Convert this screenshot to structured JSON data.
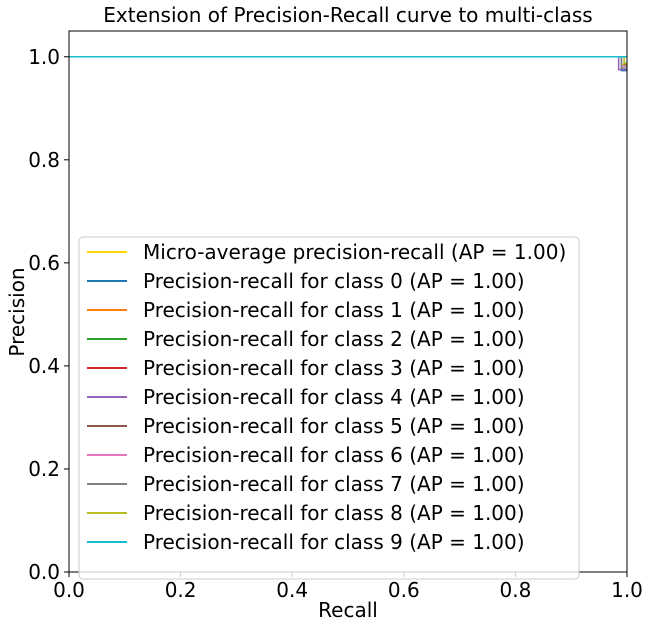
{
  "chart_data": {
    "type": "line",
    "title": "Extension of Precision-Recall curve to multi-class",
    "xlabel": "Recall",
    "ylabel": "Precision",
    "xlim": [
      0.0,
      1.0
    ],
    "ylim": [
      0.0,
      1.05
    ],
    "xticks": [
      "0.0",
      "0.2",
      "0.4",
      "0.6",
      "0.8",
      "1.0"
    ],
    "yticks": [
      "0.0",
      "0.2",
      "0.4",
      "0.6",
      "0.8",
      "1.0"
    ],
    "grid": false,
    "legend_position": "lower-left",
    "series": [
      {
        "name": "Micro-average precision-recall (AP = 1.00)",
        "color": "#ffd700",
        "x": [
          0.0,
          0.99,
          0.99,
          1.0
        ],
        "y": [
          1.0,
          1.0,
          0.985,
          0.985
        ]
      },
      {
        "name": "Precision-recall for class 0 (AP = 1.00)",
        "color": "#1f77b4",
        "x": [
          0.0,
          0.99,
          0.99,
          1.0
        ],
        "y": [
          1.0,
          1.0,
          0.973,
          0.973
        ]
      },
      {
        "name": "Precision-recall for class 1 (AP = 1.00)",
        "color": "#ff7f0e",
        "x": [
          0.0,
          0.995,
          0.995,
          1.0
        ],
        "y": [
          1.0,
          1.0,
          0.985,
          0.985
        ]
      },
      {
        "name": "Precision-recall for class 2 (AP = 1.00)",
        "color": "#2ca02c",
        "x": [
          0.0,
          0.995,
          0.995,
          1.0
        ],
        "y": [
          1.0,
          1.0,
          0.982,
          0.982
        ]
      },
      {
        "name": "Precision-recall for class 3 (AP = 1.00)",
        "color": "#d62728",
        "x": [
          0.0,
          1.0
        ],
        "y": [
          1.0,
          1.0
        ]
      },
      {
        "name": "Precision-recall for class 4 (AP = 1.00)",
        "color": "#9467bd",
        "x": [
          0.0,
          0.985,
          0.985,
          1.0
        ],
        "y": [
          1.0,
          1.0,
          0.975,
          0.975
        ]
      },
      {
        "name": "Precision-recall for class 5 (AP = 1.00)",
        "color": "#8c564b",
        "x": [
          0.0,
          1.0
        ],
        "y": [
          1.0,
          1.0
        ]
      },
      {
        "name": "Precision-recall for class 6 (AP = 1.00)",
        "color": "#e377c2",
        "x": [
          0.0,
          0.99,
          0.99,
          1.0
        ],
        "y": [
          1.0,
          1.0,
          0.982,
          0.982
        ]
      },
      {
        "name": "Precision-recall for class 7 (AP = 1.00)",
        "color": "#7f7f7f",
        "x": [
          0.0,
          0.99,
          0.99,
          1.0
        ],
        "y": [
          1.0,
          1.0,
          0.978,
          0.978
        ]
      },
      {
        "name": "Precision-recall for class 8 (AP = 1.00)",
        "color": "#bcbd22",
        "x": [
          0.0,
          0.995,
          0.995,
          1.0
        ],
        "y": [
          1.0,
          1.0,
          0.988,
          0.988
        ]
      },
      {
        "name": "Precision-recall for class 9 (AP = 1.00)",
        "color": "#17becf",
        "x": [
          0.0,
          1.0
        ],
        "y": [
          1.0,
          1.0
        ]
      }
    ]
  }
}
